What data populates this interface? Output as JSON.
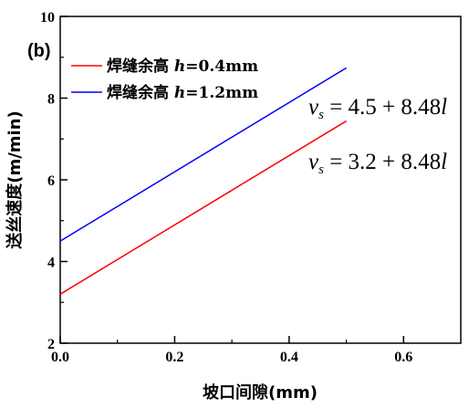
{
  "chart_data": {
    "type": "line",
    "panel_label": "(b)",
    "xlabel": "坡口间隙(mm)",
    "ylabel": "送丝速度(m/min)",
    "xlim": [
      0.0,
      0.7
    ],
    "ylim": [
      2,
      10
    ],
    "x_ticks": [
      0.0,
      0.2,
      0.4,
      0.6
    ],
    "x_tick_labels": [
      "0.0",
      "0.2",
      "0.4",
      "0.6"
    ],
    "y_ticks": [
      2,
      4,
      6,
      8,
      10
    ],
    "y_tick_labels": [
      "2",
      "4",
      "6",
      "8",
      "10"
    ],
    "grid": false,
    "legend_position": "top-left",
    "series": [
      {
        "legend_main": "焊缝余高 ",
        "legend_var": "h",
        "legend_value": "=0.4mm",
        "color": "#ff0000",
        "x": [
          0.0,
          0.5
        ],
        "y": [
          3.2,
          7.44
        ],
        "equation": {
          "lhs_var": "v",
          "lhs_sub": "s",
          "rhs": " = 3.2 + 8.48",
          "rhs_var": "l"
        }
      },
      {
        "legend_main": "焊缝余高 ",
        "legend_var": "h",
        "legend_value": "=1.2mm",
        "color": "#0000ff",
        "x": [
          0.0,
          0.5
        ],
        "y": [
          4.5,
          8.74
        ],
        "equation": {
          "lhs_var": "v",
          "lhs_sub": "s",
          "rhs": " = 4.5 + 8.48",
          "rhs_var": "l"
        }
      }
    ]
  }
}
